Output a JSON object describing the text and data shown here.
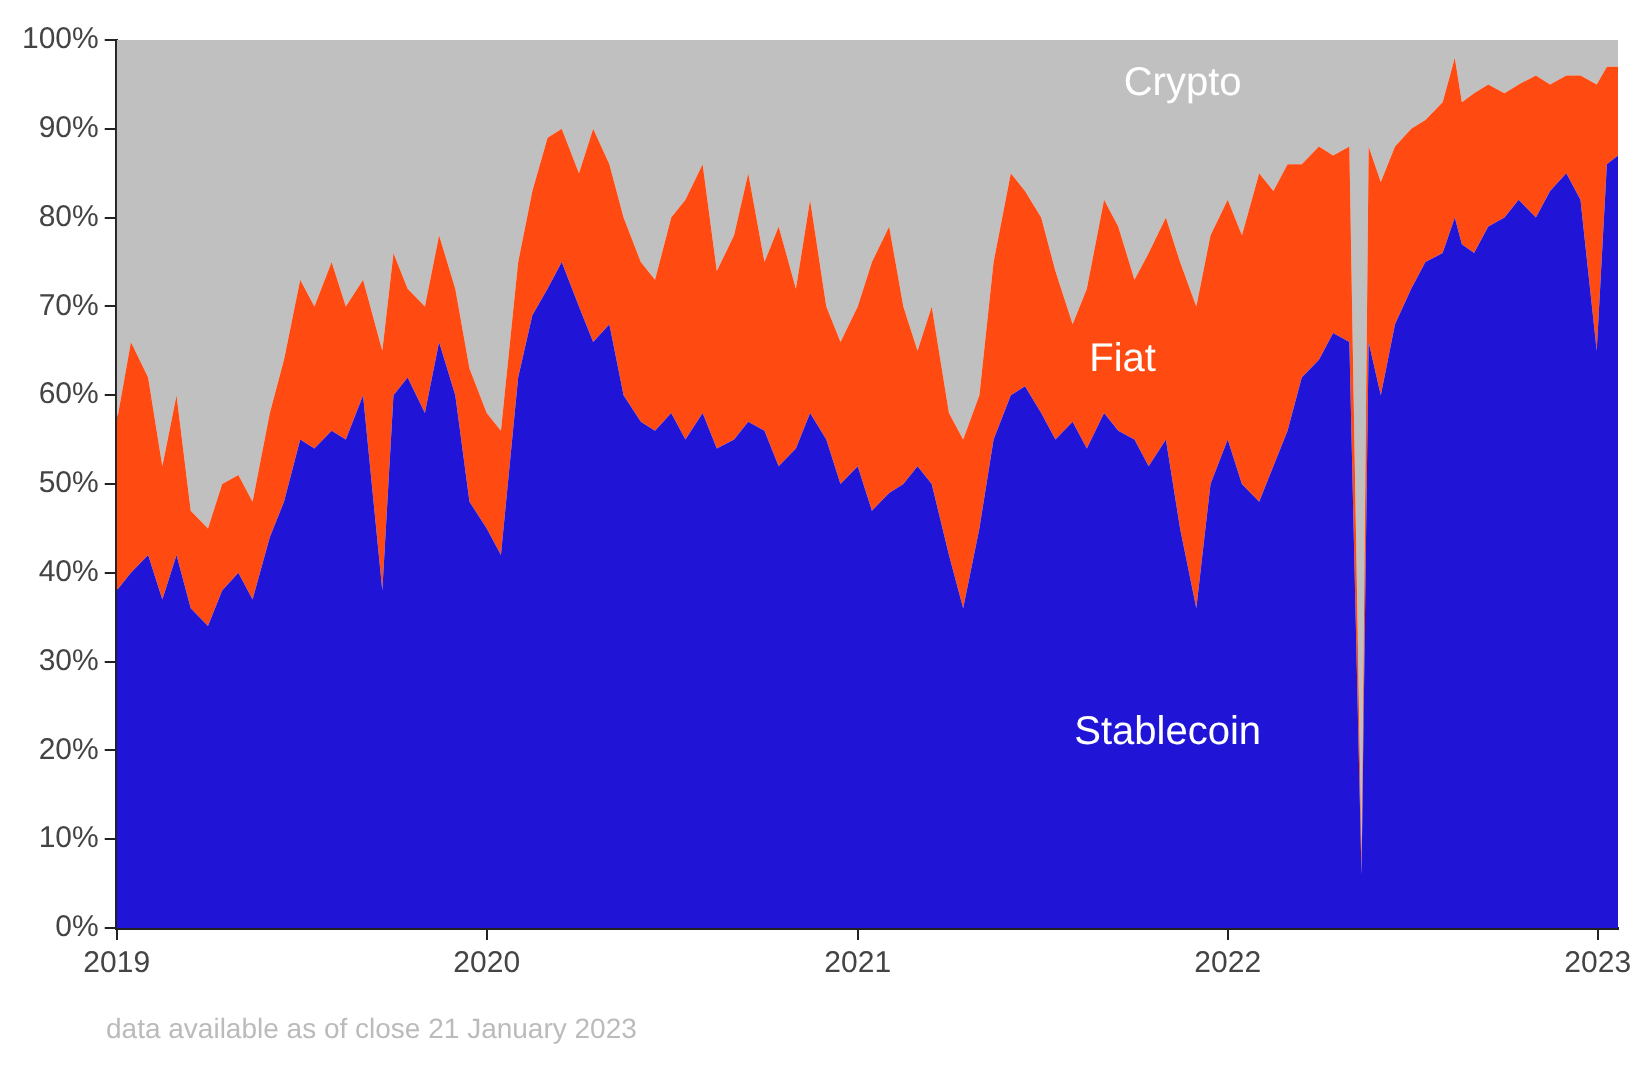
{
  "chart_data": {
    "type": "area",
    "stacked": true,
    "legend": false,
    "grid": false,
    "marker": "none",
    "x": [
      "2019-01-01",
      "2019-01-15",
      "2019-02-01",
      "2019-02-15",
      "2019-03-01",
      "2019-03-15",
      "2019-04-01",
      "2019-04-15",
      "2019-05-01",
      "2019-05-15",
      "2019-06-01",
      "2019-06-15",
      "2019-07-01",
      "2019-07-15",
      "2019-08-01",
      "2019-08-15",
      "2019-09-01",
      "2019-09-20",
      "2019-10-01",
      "2019-10-15",
      "2019-11-01",
      "2019-11-15",
      "2019-12-01",
      "2019-12-15",
      "2020-01-01",
      "2020-01-15",
      "2020-02-01",
      "2020-02-15",
      "2020-03-01",
      "2020-03-15",
      "2020-04-01",
      "2020-04-15",
      "2020-05-01",
      "2020-05-15",
      "2020-06-01",
      "2020-06-15",
      "2020-07-01",
      "2020-07-15",
      "2020-08-01",
      "2020-08-15",
      "2020-09-01",
      "2020-09-15",
      "2020-10-01",
      "2020-10-15",
      "2020-11-01",
      "2020-11-15",
      "2020-12-01",
      "2020-12-15",
      "2021-01-01",
      "2021-01-15",
      "2021-02-01",
      "2021-02-15",
      "2021-03-01",
      "2021-03-15",
      "2021-04-01",
      "2021-04-15",
      "2021-05-01",
      "2021-05-15",
      "2021-06-01",
      "2021-06-15",
      "2021-07-01",
      "2021-07-15",
      "2021-08-01",
      "2021-08-15",
      "2021-09-01",
      "2021-09-15",
      "2021-10-01",
      "2021-10-15",
      "2021-11-01",
      "2021-11-15",
      "2021-12-01",
      "2021-12-15",
      "2022-01-01",
      "2022-01-15",
      "2022-02-01",
      "2022-02-15",
      "2022-03-01",
      "2022-03-15",
      "2022-04-01",
      "2022-04-15",
      "2022-05-01",
      "2022-05-13",
      "2022-05-20",
      "2022-06-01",
      "2022-06-15",
      "2022-07-01",
      "2022-07-15",
      "2022-08-01",
      "2022-08-13",
      "2022-08-20",
      "2022-09-01",
      "2022-09-15",
      "2022-10-01",
      "2022-10-15",
      "2022-11-01",
      "2022-11-15",
      "2022-12-01",
      "2022-12-15",
      "2022-12-31",
      "2023-01-10",
      "2023-01-21"
    ],
    "series": [
      {
        "name": "Stablecoin",
        "color": "#2015d6",
        "values": [
          38,
          40,
          42,
          37,
          42,
          36,
          34,
          38,
          40,
          37,
          44,
          48,
          55,
          54,
          56,
          55,
          60,
          38,
          60,
          62,
          58,
          66,
          60,
          48,
          45,
          42,
          62,
          69,
          72,
          75,
          70,
          66,
          68,
          60,
          57,
          56,
          58,
          55,
          58,
          54,
          55,
          57,
          56,
          52,
          54,
          58,
          55,
          50,
          52,
          47,
          49,
          50,
          52,
          50,
          42,
          36,
          45,
          55,
          60,
          61,
          58,
          55,
          57,
          54,
          58,
          56,
          55,
          52,
          55,
          45,
          36,
          50,
          55,
          50,
          48,
          52,
          56,
          62,
          64,
          67,
          66,
          6,
          66,
          60,
          68,
          72,
          75,
          76,
          80,
          77,
          76,
          79,
          80,
          82,
          80,
          83,
          85,
          82,
          65,
          86,
          87
        ]
      },
      {
        "name": "Fiat",
        "color": "#ff4a12",
        "values": [
          19,
          26,
          20,
          15,
          18,
          11,
          11,
          12,
          11,
          11,
          14,
          16,
          18,
          16,
          19,
          15,
          13,
          27,
          16,
          10,
          12,
          12,
          12,
          15,
          13,
          14,
          13,
          14,
          17,
          15,
          15,
          24,
          18,
          20,
          18,
          17,
          22,
          27,
          28,
          20,
          23,
          28,
          19,
          27,
          18,
          24,
          15,
          16,
          18,
          28,
          30,
          20,
          13,
          20,
          16,
          19,
          15,
          20,
          25,
          22,
          22,
          19,
          11,
          18,
          24,
          23,
          18,
          24,
          25,
          30,
          34,
          28,
          27,
          28,
          37,
          31,
          30,
          24,
          24,
          20,
          22,
          2,
          22,
          24,
          20,
          18,
          16,
          17,
          18,
          16,
          18,
          16,
          14,
          13,
          16,
          12,
          11,
          14,
          30,
          11,
          10
        ]
      },
      {
        "name": "Crypto",
        "color": "#c0c0c0",
        "values": [
          43,
          34,
          38,
          48,
          40,
          53,
          55,
          50,
          49,
          52,
          42,
          36,
          27,
          30,
          25,
          30,
          27,
          35,
          24,
          28,
          30,
          22,
          28,
          37,
          42,
          44,
          25,
          17,
          11,
          10,
          15,
          10,
          14,
          20,
          25,
          27,
          20,
          18,
          14,
          26,
          22,
          15,
          25,
          21,
          28,
          18,
          30,
          34,
          30,
          25,
          21,
          30,
          35,
          30,
          42,
          45,
          40,
          25,
          15,
          17,
          20,
          26,
          32,
          28,
          18,
          21,
          27,
          24,
          20,
          25,
          30,
          22,
          18,
          22,
          15,
          17,
          14,
          14,
          12,
          13,
          12,
          92,
          12,
          16,
          12,
          10,
          9,
          7,
          2,
          7,
          6,
          5,
          6,
          5,
          4,
          5,
          4,
          4,
          5,
          3,
          3
        ]
      }
    ],
    "xlim": [
      "2019-01-01",
      "2023-01-21"
    ],
    "xticks": [
      "2019",
      "2020",
      "2021",
      "2022",
      "2023"
    ],
    "ylim": [
      0,
      100
    ],
    "yticks": [
      {
        "value": 0,
        "label": "0%"
      },
      {
        "value": 10,
        "label": "10%"
      },
      {
        "value": 20,
        "label": "20%"
      },
      {
        "value": 30,
        "label": "30%"
      },
      {
        "value": 40,
        "label": "40%"
      },
      {
        "value": 50,
        "label": "50%"
      },
      {
        "value": 60,
        "label": "60%"
      },
      {
        "value": 70,
        "label": "70%"
      },
      {
        "value": 80,
        "label": "80%"
      },
      {
        "value": 90,
        "label": "90%"
      },
      {
        "value": 100,
        "label": "100%"
      }
    ],
    "annotations": [
      "data available as of close 21 January 2023"
    ]
  }
}
